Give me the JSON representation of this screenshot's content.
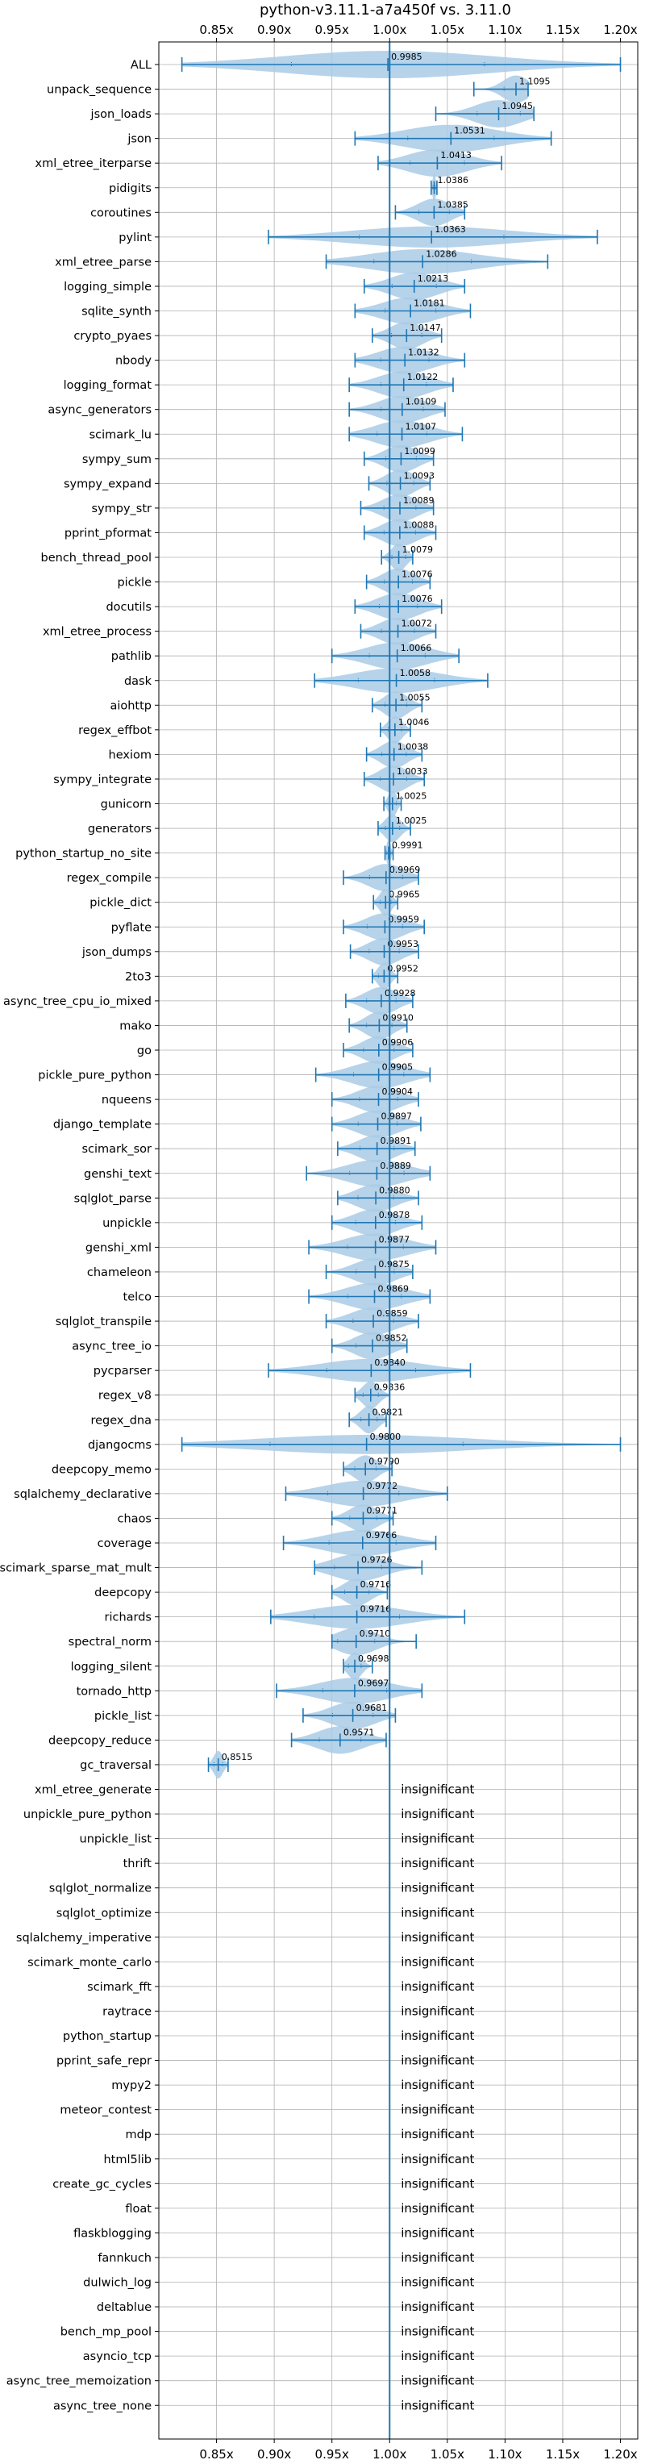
{
  "chart_data": {
    "type": "violin",
    "title": "python-v3.11.1-a7a450f vs. 3.11.0",
    "xlim": [
      0.8,
      1.215
    ],
    "xticks": [
      {
        "v": 0.85,
        "label": "0.85x"
      },
      {
        "v": 0.9,
        "label": "0.90x"
      },
      {
        "v": 0.95,
        "label": "0.95x"
      },
      {
        "v": 1.0,
        "label": "1.00x"
      },
      {
        "v": 1.05,
        "label": "1.05x"
      },
      {
        "v": 1.1,
        "label": "1.10x"
      },
      {
        "v": 1.15,
        "label": "1.15x"
      },
      {
        "v": 1.2,
        "label": "1.20x"
      }
    ],
    "grid": true,
    "reference_line": 1.0,
    "colors": {
      "violin": "#a9cbe6",
      "line": "#1f77b4",
      "grid": "#b0b0b0"
    },
    "insignificant_label": "insignificant",
    "rows": [
      {
        "name": "ALL",
        "value": 0.9985,
        "label": "0.9985",
        "min": 0.82,
        "max": 1.2,
        "w": 0.022
      },
      {
        "name": "unpack_sequence",
        "value": 1.1095,
        "label": "1.1095",
        "min": 1.073,
        "max": 1.12,
        "w": 0.012
      },
      {
        "name": "json_loads",
        "value": 1.0945,
        "label": "1.0945",
        "min": 1.04,
        "max": 1.125,
        "w": 0.022
      },
      {
        "name": "json",
        "value": 1.0531,
        "label": "1.0531",
        "min": 0.97,
        "max": 1.14,
        "w": 0.036
      },
      {
        "name": "xml_etree_iterparse",
        "value": 1.0413,
        "label": "1.0413",
        "min": 0.99,
        "max": 1.097,
        "w": 0.028
      },
      {
        "name": "pidigits",
        "value": 1.0386,
        "label": "1.0386",
        "min": 1.036,
        "max": 1.041,
        "w": 0.003
      },
      {
        "name": "coroutines",
        "value": 1.0385,
        "label": "1.0385",
        "min": 1.005,
        "max": 1.065,
        "w": 0.022
      },
      {
        "name": "pylint",
        "value": 1.0363,
        "label": "1.0363",
        "min": 0.895,
        "max": 1.18,
        "w": 0.08
      },
      {
        "name": "xml_etree_parse",
        "value": 1.0286,
        "label": "1.0286",
        "min": 0.945,
        "max": 1.137,
        "w": 0.05
      },
      {
        "name": "logging_simple",
        "value": 1.0213,
        "label": "1.0213",
        "min": 0.978,
        "max": 1.065,
        "w": 0.03
      },
      {
        "name": "sqlite_synth",
        "value": 1.0181,
        "label": "1.0181",
        "min": 0.97,
        "max": 1.07,
        "w": 0.03
      },
      {
        "name": "crypto_pyaes",
        "value": 1.0147,
        "label": "1.0147",
        "min": 0.985,
        "max": 1.045,
        "w": 0.022
      },
      {
        "name": "nbody",
        "value": 1.0132,
        "label": "1.0132",
        "min": 0.97,
        "max": 1.065,
        "w": 0.03
      },
      {
        "name": "logging_format",
        "value": 1.0122,
        "label": "1.0122",
        "min": 0.965,
        "max": 1.055,
        "w": 0.03
      },
      {
        "name": "async_generators",
        "value": 1.0109,
        "label": "1.0109",
        "min": 0.965,
        "max": 1.048,
        "w": 0.03
      },
      {
        "name": "scimark_lu",
        "value": 1.0107,
        "label": "1.0107",
        "min": 0.965,
        "max": 1.063,
        "w": 0.032
      },
      {
        "name": "sympy_sum",
        "value": 1.0099,
        "label": "1.0099",
        "min": 0.978,
        "max": 1.038,
        "w": 0.02
      },
      {
        "name": "sympy_expand",
        "value": 1.0093,
        "label": "1.0093",
        "min": 0.982,
        "max": 1.035,
        "w": 0.02
      },
      {
        "name": "sympy_str",
        "value": 1.0089,
        "label": "1.0089",
        "min": 0.975,
        "max": 1.038,
        "w": 0.022
      },
      {
        "name": "pprint_pformat",
        "value": 1.0088,
        "label": "1.0088",
        "min": 0.978,
        "max": 1.04,
        "w": 0.022
      },
      {
        "name": "bench_thread_pool",
        "value": 1.0079,
        "label": "1.0079",
        "min": 0.993,
        "max": 1.02,
        "w": 0.015
      },
      {
        "name": "pickle",
        "value": 1.0076,
        "label": "1.0076",
        "min": 0.98,
        "max": 1.035,
        "w": 0.02
      },
      {
        "name": "docutils",
        "value": 1.0076,
        "label": "1.0076",
        "min": 0.97,
        "max": 1.045,
        "w": 0.026
      },
      {
        "name": "xml_etree_process",
        "value": 1.0072,
        "label": "1.0072",
        "min": 0.975,
        "max": 1.04,
        "w": 0.022
      },
      {
        "name": "pathlib",
        "value": 1.0066,
        "label": "1.0066",
        "min": 0.95,
        "max": 1.06,
        "w": 0.035
      },
      {
        "name": "dask",
        "value": 1.0058,
        "label": "1.0058",
        "min": 0.935,
        "max": 1.085,
        "w": 0.05
      },
      {
        "name": "aiohttp",
        "value": 1.0055,
        "label": "1.0055",
        "min": 0.985,
        "max": 1.028,
        "w": 0.016
      },
      {
        "name": "regex_effbot",
        "value": 1.0046,
        "label": "1.0046",
        "min": 0.992,
        "max": 1.018,
        "w": 0.01
      },
      {
        "name": "hexiom",
        "value": 1.0038,
        "label": "1.0038",
        "min": 0.98,
        "max": 1.028,
        "w": 0.018
      },
      {
        "name": "sympy_integrate",
        "value": 1.0033,
        "label": "1.0033",
        "min": 0.978,
        "max": 1.03,
        "w": 0.02
      },
      {
        "name": "gunicorn",
        "value": 1.0025,
        "label": "1.0025",
        "min": 0.995,
        "max": 1.01,
        "w": 0.007
      },
      {
        "name": "generators",
        "value": 1.0025,
        "label": "1.0025",
        "min": 0.99,
        "max": 1.018,
        "w": 0.012
      },
      {
        "name": "python_startup_no_site",
        "value": 0.9991,
        "label": "0.9991",
        "min": 0.996,
        "max": 1.003,
        "w": 0.004
      },
      {
        "name": "regex_compile",
        "value": 0.9969,
        "label": "0.9969",
        "min": 0.96,
        "max": 1.025,
        "w": 0.024
      },
      {
        "name": "pickle_dict",
        "value": 0.9965,
        "label": "0.9965",
        "min": 0.986,
        "max": 1.007,
        "w": 0.01
      },
      {
        "name": "pyflate",
        "value": 0.9959,
        "label": "0.9959",
        "min": 0.96,
        "max": 1.03,
        "w": 0.025
      },
      {
        "name": "json_dumps",
        "value": 0.9953,
        "label": "0.9953",
        "min": 0.966,
        "max": 1.025,
        "w": 0.022
      },
      {
        "name": "2to3",
        "value": 0.9952,
        "label": "0.9952",
        "min": 0.985,
        "max": 1.007,
        "w": 0.01
      },
      {
        "name": "async_tree_cpu_io_mixed",
        "value": 0.9928,
        "label": "0.9928",
        "min": 0.962,
        "max": 1.02,
        "w": 0.022
      },
      {
        "name": "mako",
        "value": 0.991,
        "label": "0.9910",
        "min": 0.965,
        "max": 1.015,
        "w": 0.02
      },
      {
        "name": "go",
        "value": 0.9906,
        "label": "0.9906",
        "min": 0.96,
        "max": 1.02,
        "w": 0.022
      },
      {
        "name": "pickle_pure_python",
        "value": 0.9905,
        "label": "0.9905",
        "min": 0.936,
        "max": 1.035,
        "w": 0.035
      },
      {
        "name": "nqueens",
        "value": 0.9904,
        "label": "0.9904",
        "min": 0.95,
        "max": 1.025,
        "w": 0.028
      },
      {
        "name": "django_template",
        "value": 0.9897,
        "label": "0.9897",
        "min": 0.95,
        "max": 1.027,
        "w": 0.028
      },
      {
        "name": "scimark_sor",
        "value": 0.9891,
        "label": "0.9891",
        "min": 0.955,
        "max": 1.022,
        "w": 0.025
      },
      {
        "name": "genshi_text",
        "value": 0.9889,
        "label": "0.9889",
        "min": 0.928,
        "max": 1.035,
        "w": 0.038
      },
      {
        "name": "sqlglot_parse",
        "value": 0.988,
        "label": "0.9880",
        "min": 0.955,
        "max": 1.025,
        "w": 0.026
      },
      {
        "name": "unpickle",
        "value": 0.9878,
        "label": "0.9878",
        "min": 0.95,
        "max": 1.028,
        "w": 0.027
      },
      {
        "name": "genshi_xml",
        "value": 0.9877,
        "label": "0.9877",
        "min": 0.93,
        "max": 1.04,
        "w": 0.04
      },
      {
        "name": "chameleon",
        "value": 0.9875,
        "label": "0.9875",
        "min": 0.945,
        "max": 1.02,
        "w": 0.028
      },
      {
        "name": "telco",
        "value": 0.9869,
        "label": "0.9869",
        "min": 0.93,
        "max": 1.035,
        "w": 0.038
      },
      {
        "name": "sqlglot_transpile",
        "value": 0.9859,
        "label": "0.9859",
        "min": 0.945,
        "max": 1.025,
        "w": 0.028
      },
      {
        "name": "async_tree_io",
        "value": 0.9852,
        "label": "0.9852",
        "min": 0.95,
        "max": 1.015,
        "w": 0.025
      },
      {
        "name": "pycparser",
        "value": 0.984,
        "label": "0.9840",
        "min": 0.895,
        "max": 1.07,
        "w": 0.06
      },
      {
        "name": "regex_v8",
        "value": 0.9836,
        "label": "0.9836",
        "min": 0.97,
        "max": 1.0,
        "w": 0.012
      },
      {
        "name": "regex_dna",
        "value": 0.9821,
        "label": "0.9821",
        "min": 0.965,
        "max": 0.997,
        "w": 0.012
      },
      {
        "name": "djangocms",
        "value": 0.98,
        "label": "0.9800",
        "min": 0.82,
        "max": 1.2,
        "w": 0.12
      },
      {
        "name": "deepcopy_memo",
        "value": 0.979,
        "label": "0.9790",
        "min": 0.96,
        "max": 1.002,
        "w": 0.015
      },
      {
        "name": "sqlalchemy_declarative",
        "value": 0.9772,
        "label": "0.9772",
        "min": 0.91,
        "max": 1.05,
        "w": 0.045
      },
      {
        "name": "chaos",
        "value": 0.9771,
        "label": "0.9771",
        "min": 0.95,
        "max": 1.003,
        "w": 0.02
      },
      {
        "name": "coverage",
        "value": 0.9766,
        "label": "0.9766",
        "min": 0.908,
        "max": 1.04,
        "w": 0.045
      },
      {
        "name": "scimark_sparse_mat_mult",
        "value": 0.9726,
        "label": "0.9726",
        "min": 0.935,
        "max": 1.028,
        "w": 0.03
      },
      {
        "name": "deepcopy",
        "value": 0.9716,
        "label": "0.9716",
        "min": 0.95,
        "max": 0.998,
        "w": 0.017
      },
      {
        "name": "richards",
        "value": 0.9716,
        "label": "0.9716",
        "min": 0.897,
        "max": 1.065,
        "w": 0.055
      },
      {
        "name": "spectral_norm",
        "value": 0.971,
        "label": "0.9710",
        "min": 0.95,
        "max": 1.023,
        "w": 0.024
      },
      {
        "name": "logging_silent",
        "value": 0.9698,
        "label": "0.9698",
        "min": 0.96,
        "max": 0.985,
        "w": 0.01
      },
      {
        "name": "tornado_http",
        "value": 0.9697,
        "label": "0.9697",
        "min": 0.902,
        "max": 1.028,
        "w": 0.045
      },
      {
        "name": "pickle_list",
        "value": 0.9681,
        "label": "0.9681",
        "min": 0.925,
        "max": 1.005,
        "w": 0.03
      },
      {
        "name": "deepcopy_reduce",
        "value": 0.9571,
        "label": "0.9571",
        "min": 0.915,
        "max": 0.997,
        "w": 0.03
      },
      {
        "name": "gc_traversal",
        "value": 0.8515,
        "label": "0.8515",
        "min": 0.843,
        "max": 0.86,
        "w": 0.007
      },
      {
        "name": "xml_etree_generate",
        "insignificant": true
      },
      {
        "name": "unpickle_pure_python",
        "insignificant": true
      },
      {
        "name": "unpickle_list",
        "insignificant": true
      },
      {
        "name": "thrift",
        "insignificant": true
      },
      {
        "name": "sqlglot_normalize",
        "insignificant": true
      },
      {
        "name": "sqlglot_optimize",
        "insignificant": true
      },
      {
        "name": "sqlalchemy_imperative",
        "insignificant": true
      },
      {
        "name": "scimark_monte_carlo",
        "insignificant": true
      },
      {
        "name": "scimark_fft",
        "insignificant": true
      },
      {
        "name": "raytrace",
        "insignificant": true
      },
      {
        "name": "python_startup",
        "insignificant": true
      },
      {
        "name": "pprint_safe_repr",
        "insignificant": true
      },
      {
        "name": "mypy2",
        "insignificant": true
      },
      {
        "name": "meteor_contest",
        "insignificant": true
      },
      {
        "name": "mdp",
        "insignificant": true
      },
      {
        "name": "html5lib",
        "insignificant": true
      },
      {
        "name": "create_gc_cycles",
        "insignificant": true
      },
      {
        "name": "float",
        "insignificant": true
      },
      {
        "name": "flaskblogging",
        "insignificant": true
      },
      {
        "name": "fannkuch",
        "insignificant": true
      },
      {
        "name": "dulwich_log",
        "insignificant": true
      },
      {
        "name": "deltablue",
        "insignificant": true
      },
      {
        "name": "bench_mp_pool",
        "insignificant": true
      },
      {
        "name": "asyncio_tcp",
        "insignificant": true
      },
      {
        "name": "async_tree_memoization",
        "insignificant": true
      },
      {
        "name": "async_tree_none",
        "insignificant": true
      }
    ]
  }
}
